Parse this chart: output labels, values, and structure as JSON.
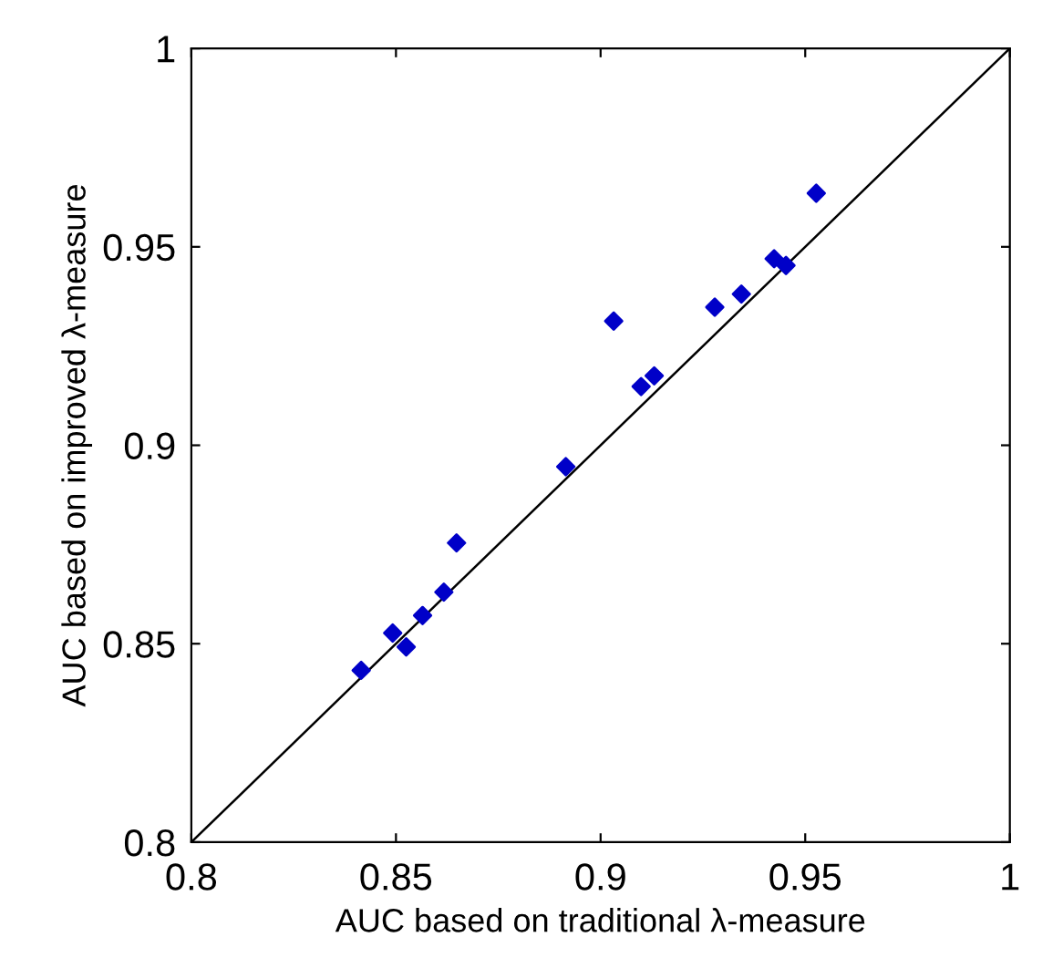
{
  "chart_data": {
    "type": "scatter",
    "xlabel": "AUC based on traditional λ-measure",
    "ylabel": "AUC based on improved λ-measure",
    "xlim": [
      0.8,
      1
    ],
    "ylim": [
      0.8,
      1
    ],
    "xticks": [
      0.8,
      0.85,
      0.9,
      0.95,
      1
    ],
    "yticks": [
      0.8,
      0.85,
      0.9,
      0.95,
      1
    ],
    "grid": false,
    "legend": false,
    "series": [
      {
        "color": "#0000c8",
        "marker": "diamond",
        "x": [
          0.8415,
          0.8492,
          0.8525,
          0.8565,
          0.8617,
          0.8648,
          0.8915,
          0.9032,
          0.9099,
          0.9131,
          0.9279,
          0.9344,
          0.9424,
          0.9453,
          0.9527
        ],
        "values": [
          0.8433,
          0.8527,
          0.8492,
          0.8571,
          0.863,
          0.8754,
          0.8946,
          0.9313,
          0.9148,
          0.9175,
          0.9348,
          0.9381,
          0.947,
          0.9453,
          0.9635
        ]
      },
      {
        "type": "line",
        "color": "#000000",
        "marker": "none",
        "line_style": "solid",
        "x": [
          0.8,
          1
        ],
        "values": [
          0.8,
          1
        ]
      }
    ]
  }
}
